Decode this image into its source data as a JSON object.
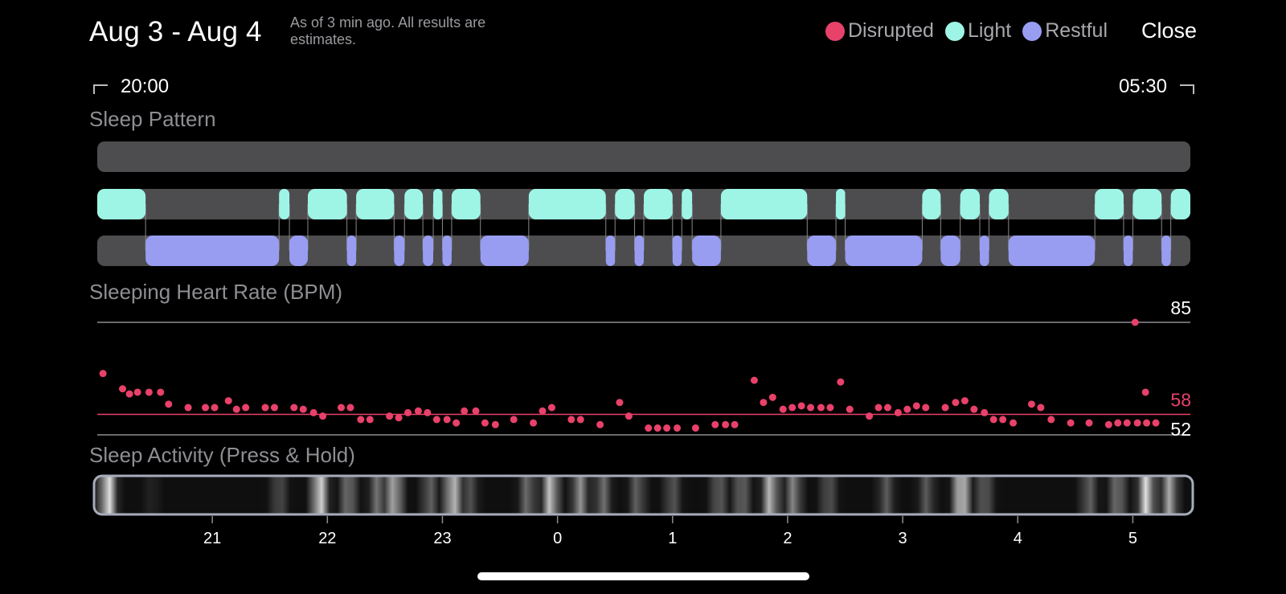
{
  "header": {
    "title": "Aug 3 - Aug 4",
    "subtitle": "As of 3 min ago. All results are estimates.",
    "close_label": "Close"
  },
  "legend": [
    {
      "label": "Disrupted",
      "color": "#e8416a"
    },
    {
      "label": "Light",
      "color": "#9ef5e6"
    },
    {
      "label": "Restful",
      "color": "#989df2"
    }
  ],
  "range": {
    "start": "20:00",
    "end": "05:30"
  },
  "sections": {
    "sleep_pattern": "Sleep Pattern",
    "heart_rate": "Sleeping Heart Rate (BPM)",
    "activity": "Sleep Activity (Press & Hold)"
  },
  "colors": {
    "track": "#4d4d4f",
    "connector": "#888888",
    "hr_dot": "#e8416a",
    "hr_avg_line": "#e8416a",
    "gridline": "#8e8e93"
  },
  "chart_data": {
    "type": "scatter",
    "time_axis": {
      "start": 20.0,
      "end": 29.5,
      "ticks": [
        "21",
        "22",
        "23",
        "0",
        "1",
        "2",
        "3",
        "4",
        "5"
      ]
    },
    "heart_rate": {
      "labels": {
        "max": "85",
        "avg": "58",
        "min": "52"
      },
      "lines": {
        "max": 85,
        "avg": 58,
        "min": 52
      },
      "y_range": [
        52,
        85
      ],
      "points": [
        [
          20.05,
          70
        ],
        [
          20.22,
          65.5
        ],
        [
          20.28,
          64
        ],
        [
          20.35,
          64.5
        ],
        [
          20.45,
          64.5
        ],
        [
          20.55,
          64.5
        ],
        [
          20.62,
          61
        ],
        [
          20.79,
          60
        ],
        [
          20.94,
          60
        ],
        [
          21.02,
          60
        ],
        [
          21.14,
          62
        ],
        [
          21.21,
          59.5
        ],
        [
          21.29,
          60
        ],
        [
          21.46,
          60
        ],
        [
          21.54,
          60
        ],
        [
          21.71,
          60
        ],
        [
          21.79,
          59.5
        ],
        [
          21.88,
          58.5
        ],
        [
          21.96,
          57.5
        ],
        [
          22.12,
          60
        ],
        [
          22.2,
          60
        ],
        [
          22.29,
          56.5
        ],
        [
          22.37,
          56.5
        ],
        [
          22.54,
          57.5
        ],
        [
          22.62,
          57
        ],
        [
          22.7,
          58.5
        ],
        [
          22.79,
          59
        ],
        [
          22.87,
          58.5
        ],
        [
          22.95,
          56.5
        ],
        [
          23.04,
          56.5
        ],
        [
          23.12,
          55.5
        ],
        [
          23.19,
          59
        ],
        [
          23.29,
          59
        ],
        [
          23.37,
          55.5
        ],
        [
          23.46,
          55
        ],
        [
          23.62,
          56.5
        ],
        [
          23.79,
          55.5
        ],
        [
          23.87,
          59
        ],
        [
          23.95,
          60
        ],
        [
          24.12,
          56.5
        ],
        [
          24.2,
          56.5
        ],
        [
          24.37,
          55
        ],
        [
          24.54,
          61.5
        ],
        [
          24.62,
          57.5
        ],
        [
          24.79,
          54
        ],
        [
          24.87,
          54
        ],
        [
          24.95,
          54
        ],
        [
          25.04,
          54
        ],
        [
          25.2,
          54
        ],
        [
          25.37,
          55
        ],
        [
          25.46,
          55
        ],
        [
          25.54,
          55
        ],
        [
          25.71,
          68
        ],
        [
          25.79,
          61.5
        ],
        [
          25.87,
          63
        ],
        [
          25.96,
          59.5
        ],
        [
          26.04,
          60
        ],
        [
          26.12,
          60.5
        ],
        [
          26.2,
          60
        ],
        [
          26.29,
          60
        ],
        [
          26.37,
          60
        ],
        [
          26.46,
          67.5
        ],
        [
          26.54,
          59.5
        ],
        [
          26.71,
          57.5
        ],
        [
          26.79,
          60
        ],
        [
          26.87,
          60
        ],
        [
          26.96,
          58.5
        ],
        [
          27.04,
          59.5
        ],
        [
          27.12,
          60.5
        ],
        [
          27.2,
          60
        ],
        [
          27.37,
          60
        ],
        [
          27.46,
          61.5
        ],
        [
          27.54,
          62
        ],
        [
          27.62,
          59.5
        ],
        [
          27.71,
          58.5
        ],
        [
          27.79,
          56.5
        ],
        [
          27.87,
          56.5
        ],
        [
          27.96,
          55.5
        ],
        [
          28.12,
          61
        ],
        [
          28.2,
          60
        ],
        [
          28.29,
          56.5
        ],
        [
          28.46,
          55.5
        ],
        [
          28.62,
          55.5
        ],
        [
          28.79,
          55
        ],
        [
          28.87,
          55.5
        ],
        [
          28.95,
          55.5
        ],
        [
          29.04,
          55.5
        ],
        [
          29.12,
          55.5
        ],
        [
          29.2,
          55.5
        ],
        [
          29.02,
          85
        ],
        [
          29.11,
          64.5
        ]
      ]
    },
    "sleep_pattern": {
      "stages": [
        "Disrupted",
        "Light",
        "Restful"
      ],
      "segments": [
        [
          20.0,
          20.42,
          1
        ],
        [
          20.42,
          21.58,
          2
        ],
        [
          21.58,
          21.67,
          1
        ],
        [
          21.67,
          21.83,
          2
        ],
        [
          21.83,
          22.17,
          1
        ],
        [
          22.17,
          22.25,
          2
        ],
        [
          22.25,
          22.58,
          1
        ],
        [
          22.58,
          22.67,
          2
        ],
        [
          22.67,
          22.83,
          1
        ],
        [
          22.83,
          22.92,
          2
        ],
        [
          22.92,
          23.0,
          1
        ],
        [
          23.0,
          23.08,
          2
        ],
        [
          23.08,
          23.33,
          1
        ],
        [
          23.33,
          23.75,
          2
        ],
        [
          23.75,
          24.42,
          1
        ],
        [
          24.42,
          24.5,
          2
        ],
        [
          24.5,
          24.67,
          1
        ],
        [
          24.67,
          24.75,
          2
        ],
        [
          24.75,
          25.0,
          1
        ],
        [
          25.0,
          25.08,
          2
        ],
        [
          25.08,
          25.17,
          1
        ],
        [
          25.17,
          25.42,
          2
        ],
        [
          25.42,
          26.17,
          1
        ],
        [
          26.17,
          26.42,
          2
        ],
        [
          26.42,
          26.5,
          1
        ],
        [
          26.5,
          27.17,
          2
        ],
        [
          27.17,
          27.33,
          1
        ],
        [
          27.33,
          27.5,
          2
        ],
        [
          27.5,
          27.67,
          1
        ],
        [
          27.67,
          27.75,
          2
        ],
        [
          27.75,
          27.92,
          1
        ],
        [
          27.92,
          28.67,
          2
        ],
        [
          28.67,
          28.92,
          1
        ],
        [
          28.92,
          29.0,
          2
        ],
        [
          29.0,
          29.25,
          1
        ],
        [
          29.25,
          29.33,
          2
        ],
        [
          29.33,
          29.5,
          1
        ]
      ]
    },
    "activity": [
      [
        20.12,
        1.0
      ],
      [
        20.5,
        0.1
      ],
      [
        21.6,
        0.3
      ],
      [
        21.95,
        0.95
      ],
      [
        22.2,
        0.5
      ],
      [
        22.45,
        0.45
      ],
      [
        22.6,
        0.75
      ],
      [
        22.9,
        0.4
      ],
      [
        23.1,
        0.85
      ],
      [
        23.25,
        0.3
      ],
      [
        23.75,
        0.45
      ],
      [
        23.95,
        0.85
      ],
      [
        24.2,
        0.6
      ],
      [
        24.4,
        0.45
      ],
      [
        24.7,
        0.4
      ],
      [
        25.0,
        0.35
      ],
      [
        25.4,
        0.4
      ],
      [
        25.6,
        0.45
      ],
      [
        25.85,
        0.8
      ],
      [
        26.05,
        0.55
      ],
      [
        26.35,
        0.35
      ],
      [
        26.85,
        0.35
      ],
      [
        27.2,
        0.35
      ],
      [
        27.5,
        0.95
      ],
      [
        27.7,
        0.4
      ],
      [
        28.6,
        0.4
      ],
      [
        28.85,
        0.5
      ],
      [
        29.1,
        0.95
      ],
      [
        29.3,
        0.7
      ]
    ]
  }
}
